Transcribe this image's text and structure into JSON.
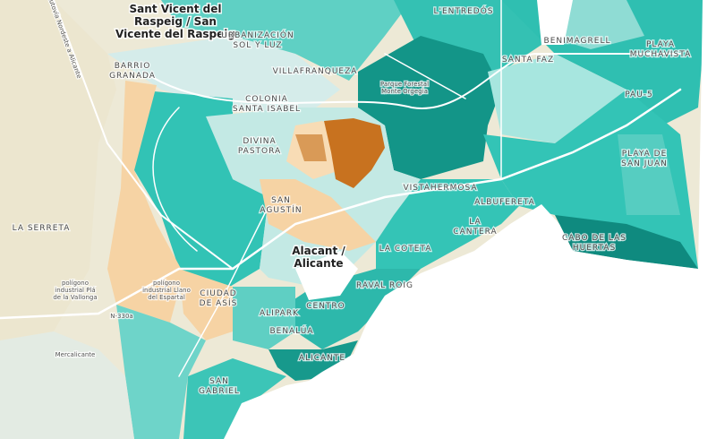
{
  "labels": [
    [
      "Sant Vicent del",
      "Raspeig / San",
      "Vicente del Raspeig"
    ],
    [
      "URBANIZACIÓN",
      "SOL Y LUZ"
    ],
    [
      "VILLAFRANQUEZA"
    ],
    [
      "BARRIO",
      "GRANADA"
    ],
    [
      "COLONIA",
      "SANTA ISABEL"
    ],
    [
      "DIVINA",
      "PASTORA"
    ],
    [
      "L'ENTREDÓS"
    ],
    [
      "BENIMAGRELL"
    ],
    [
      "SANTA FAZ"
    ],
    [
      "PLAYA",
      "MUCHAVISTA"
    ],
    [
      "PAU-5"
    ],
    [
      "PLAYA DE",
      "SAN JUAN"
    ],
    [
      "VISTAHERMOSA"
    ],
    [
      "ALBUFERETA"
    ],
    [
      "LA",
      "CANTERA"
    ],
    [
      "CABO DE LAS",
      "HUERTAS"
    ],
    [
      "SAN",
      "AGUSTÍN"
    ],
    [
      "Alacant /",
      "Alicante"
    ],
    [
      "LA COTETA"
    ],
    [
      "RAVAL ROIG"
    ],
    [
      "LA SERRETA"
    ],
    [
      "CIUDAD",
      "DE ASÍS"
    ],
    [
      "ALIPARK"
    ],
    [
      "BENALÚA"
    ],
    [
      "CENTRO"
    ],
    [
      "ALICANTE"
    ],
    [
      "SAN",
      "GABRIEL"
    ],
    [
      "Mercalicante"
    ],
    [
      "polígono",
      "industrial Plá",
      "de la Vallonga"
    ],
    [
      "polígono",
      "industrial Llano",
      "del Espartal"
    ],
    [
      "N-330a"
    ],
    [
      "Parque Forestal",
      "Monte Orgegia"
    ],
    [
      "Autovía Nordeste a Alicante"
    ]
  ]
}
